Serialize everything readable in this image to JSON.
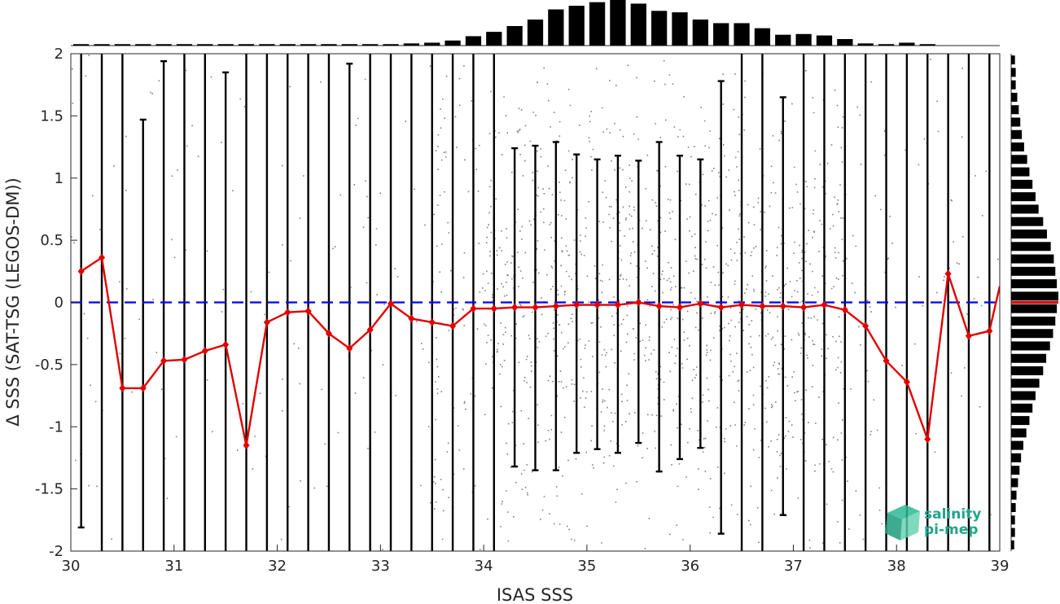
{
  "chart_data": {
    "type": "scatter",
    "xlabel": "ISAS SSS",
    "ylabel": "Δ SSS (SAT-TSG (LEGOS-DM))",
    "xlim": [
      30,
      39
    ],
    "ylim": [
      -2,
      2
    ],
    "x_ticks": [
      "30",
      "31",
      "32",
      "33",
      "34",
      "35",
      "36",
      "37",
      "38",
      "39"
    ],
    "y_ticks": [
      "2",
      "1.5",
      "1",
      "0.5",
      "0",
      "-0.5",
      "-1",
      "-1.5",
      "-2"
    ],
    "grid": false,
    "zero_line": {
      "y": 0,
      "style": "dashed",
      "color": "#0000ff"
    },
    "scatter": {
      "color": "#808080",
      "description": "dense cloud of individual match-up points, densest between ISAS SSS 34 and 37.5"
    },
    "bin_median": {
      "color": "#e00000",
      "x": [
        30.1,
        30.3,
        30.5,
        30.7,
        30.9,
        31.1,
        31.3,
        31.5,
        31.7,
        31.9,
        32.1,
        32.3,
        32.5,
        32.7,
        32.9,
        33.1,
        33.3,
        33.5,
        33.7,
        33.9,
        34.1,
        34.3,
        34.5,
        34.7,
        34.9,
        35.1,
        35.3,
        35.5,
        35.7,
        35.9,
        36.1,
        36.3,
        36.5,
        36.7,
        36.9,
        37.1,
        37.3,
        37.5,
        37.7,
        37.9,
        38.1,
        38.3,
        38.5,
        38.7,
        38.9,
        39.0
      ],
      "y": [
        0.25,
        0.36,
        -0.69,
        -0.69,
        -0.47,
        -0.46,
        -0.39,
        -0.34,
        -1.15,
        -0.16,
        -0.08,
        -0.07,
        -0.25,
        -0.37,
        -0.22,
        -0.01,
        -0.13,
        -0.16,
        -0.19,
        -0.05,
        -0.05,
        -0.04,
        -0.04,
        -0.03,
        -0.02,
        -0.02,
        -0.02,
        0.0,
        -0.03,
        -0.04,
        -0.01,
        -0.04,
        -0.02,
        -0.03,
        -0.03,
        -0.04,
        -0.02,
        -0.06,
        -0.19,
        -0.47,
        -0.64,
        -1.1,
        0.23,
        -0.27,
        -0.23,
        0.13
      ]
    },
    "bin_spread": {
      "color": "#000000",
      "x": [
        30.1,
        30.3,
        30.5,
        30.7,
        30.9,
        31.1,
        31.3,
        31.5,
        31.7,
        31.9,
        32.1,
        32.3,
        32.5,
        32.7,
        32.9,
        33.1,
        33.3,
        33.5,
        33.7,
        33.9,
        34.1,
        34.3,
        34.5,
        34.7,
        34.9,
        35.1,
        35.3,
        35.5,
        35.7,
        35.9,
        36.1,
        36.3,
        36.5,
        36.7,
        36.9,
        37.1,
        37.3,
        37.5,
        37.7,
        37.9,
        38.1,
        38.3,
        38.5,
        38.7,
        38.9
      ],
      "low": [
        -1.81,
        -2.2,
        -2.2,
        -2.2,
        -2.2,
        -2.2,
        -2.2,
        -2.2,
        -2.2,
        -2.2,
        -2.2,
        -2.2,
        -2.2,
        -2.2,
        -2.2,
        -2.2,
        -2.2,
        -2.2,
        -2.2,
        -2.2,
        -2.2,
        -1.32,
        -1.35,
        -1.35,
        -1.21,
        -1.18,
        -1.21,
        -1.13,
        -1.36,
        -1.26,
        -1.17,
        -1.86,
        -2.2,
        -2.2,
        -1.71,
        -2.2,
        -2.2,
        -2.2,
        -2.2,
        -2.2,
        -2.2,
        -2.2,
        -2.2,
        -2.2,
        -2.2
      ],
      "high": [
        2.2,
        2.2,
        2.2,
        1.47,
        1.94,
        2.2,
        2.2,
        1.85,
        2.2,
        2.2,
        2.2,
        2.2,
        2.2,
        1.92,
        2.2,
        2.2,
        2.2,
        2.2,
        2.2,
        2.2,
        2.2,
        1.24,
        1.26,
        1.29,
        1.19,
        1.15,
        1.18,
        1.14,
        1.29,
        1.18,
        1.15,
        1.78,
        2.2,
        2.2,
        1.65,
        2.2,
        2.2,
        2.2,
        2.2,
        2.2,
        2.2,
        2.2,
        2.2,
        2.2,
        2.2
      ]
    },
    "top_histogram": {
      "color": "#000000",
      "x": [
        30.1,
        30.3,
        30.5,
        30.7,
        30.9,
        31.1,
        31.3,
        31.5,
        31.7,
        31.9,
        32.1,
        32.3,
        32.5,
        32.7,
        32.9,
        33.1,
        33.3,
        33.5,
        33.7,
        33.9,
        34.1,
        34.3,
        34.5,
        34.7,
        34.9,
        35.1,
        35.3,
        35.5,
        35.7,
        35.9,
        36.1,
        36.3,
        36.5,
        36.7,
        36.9,
        37.1,
        37.3,
        37.5,
        37.7,
        37.9,
        38.1,
        38.3,
        38.5,
        38.7,
        38.9
      ],
      "counts": [
        0.02,
        0.02,
        0.02,
        0.02,
        0.02,
        0.02,
        0.02,
        0.02,
        0.02,
        0.02,
        0.02,
        0.02,
        0.02,
        0.02,
        0.02,
        0.02,
        0.03,
        0.04,
        0.07,
        0.13,
        0.19,
        0.27,
        0.36,
        0.5,
        0.55,
        0.6,
        0.63,
        0.58,
        0.48,
        0.46,
        0.36,
        0.31,
        0.31,
        0.24,
        0.15,
        0.16,
        0.14,
        0.09,
        0.03,
        0.02,
        0.04,
        0.02,
        0.0,
        0.0,
        0.0
      ]
    },
    "right_histogram": {
      "color": "#000000",
      "highlight_color": "#e00000",
      "highlight_y": 0,
      "y": [
        1.95,
        1.85,
        1.75,
        1.65,
        1.55,
        1.45,
        1.35,
        1.25,
        1.15,
        1.05,
        0.95,
        0.85,
        0.75,
        0.65,
        0.55,
        0.45,
        0.35,
        0.25,
        0.15,
        0.05,
        -0.05,
        -0.15,
        -0.25,
        -0.35,
        -0.45,
        -0.55,
        -0.65,
        -0.75,
        -0.85,
        -0.95,
        -1.05,
        -1.15,
        -1.25,
        -1.35,
        -1.45,
        -1.55,
        -1.65,
        -1.75,
        -1.85,
        -1.95
      ],
      "counts": [
        0.05,
        0.06,
        0.06,
        0.08,
        0.1,
        0.12,
        0.14,
        0.17,
        0.21,
        0.24,
        0.28,
        0.32,
        0.36,
        0.42,
        0.47,
        0.52,
        0.56,
        0.58,
        0.6,
        0.62,
        0.6,
        0.58,
        0.55,
        0.51,
        0.46,
        0.42,
        0.37,
        0.32,
        0.28,
        0.24,
        0.2,
        0.16,
        0.13,
        0.11,
        0.09,
        0.07,
        0.06,
        0.05,
        0.05,
        0.04
      ]
    }
  },
  "logo": {
    "line1": "salinity",
    "line2": "pi-mep",
    "color": "#1fa58a"
  }
}
